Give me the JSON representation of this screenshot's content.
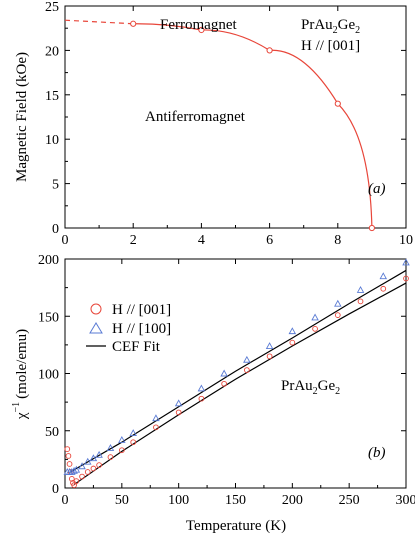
{
  "chart_data": [
    {
      "type": "line",
      "panel_label": "(a)",
      "xlabel": "",
      "ylabel": "Magnetic Field (kOe)",
      "xlim": [
        0,
        10
      ],
      "ylim": [
        0,
        25
      ],
      "x_ticks": [
        "0",
        "2",
        "4",
        "6",
        "8",
        "10"
      ],
      "y_ticks": [
        "0",
        "5",
        "10",
        "15",
        "20",
        "25"
      ],
      "annotations": {
        "ferro": "Ferromagnet",
        "antiferro": "Antiferromagnet",
        "compound": "PrAu",
        "compound_sub1": "2",
        "compound_mid": "Ge",
        "compound_sub2": "2",
        "field_dir": "H // [001]"
      },
      "series": [
        {
          "style": "markers",
          "color": "#e8463a",
          "x": [
            2,
            4,
            6,
            8,
            9
          ],
          "y": [
            23.0,
            22.3,
            20.0,
            14.0,
            0.0
          ]
        },
        {
          "style": "dashed-extrapolation",
          "color": "#e8463a",
          "x": [
            0,
            2
          ],
          "y": [
            23.4,
            23.0
          ]
        }
      ],
      "grid": false
    },
    {
      "type": "scatter",
      "panel_label": "(b)",
      "xlabel": "Temperature (K)",
      "ylabel": "χ",
      "ylabel_sup": "−1",
      "ylabel_unit": "(mole/emu)",
      "xlim": [
        0,
        300
      ],
      "ylim": [
        0,
        200
      ],
      "x_ticks": [
        "0",
        "50",
        "100",
        "150",
        "200",
        "250",
        "300"
      ],
      "y_ticks": [
        "0",
        "50",
        "100",
        "150",
        "200"
      ],
      "annotations": {
        "compound": "PrAu",
        "compound_sub1": "2",
        "compound_mid": "Ge",
        "compound_sub2": "2"
      },
      "legend": [
        {
          "label": "H // [001]",
          "marker": "circle",
          "color": "#e8463a"
        },
        {
          "label": "H // [100]",
          "marker": "triangle",
          "color": "#5a7bd4"
        },
        {
          "label": "CEF Fit",
          "marker": "line",
          "color": "#000000"
        }
      ],
      "legend_position": "top-left",
      "series": [
        {
          "name": "H // [001]",
          "marker": "circle",
          "color": "#e8463a",
          "x": [
            2,
            3,
            4,
            5,
            6,
            7,
            8,
            10,
            15,
            20,
            25,
            30,
            40,
            50,
            60,
            80,
            100,
            120,
            140,
            160,
            180,
            200,
            220,
            240,
            260,
            280,
            300
          ],
          "y": [
            34,
            28,
            21,
            14,
            8,
            4.5,
            2.5,
            6,
            10,
            14,
            17,
            20,
            27,
            33,
            40,
            53,
            66,
            78,
            91,
            103,
            115,
            127,
            139,
            151,
            163,
            174,
            183
          ]
        },
        {
          "name": "H // [100]",
          "marker": "triangle",
          "color": "#5a7bd4",
          "x": [
            2,
            4,
            6,
            8,
            10,
            15,
            20,
            25,
            30,
            40,
            50,
            60,
            80,
            100,
            120,
            140,
            160,
            180,
            200,
            220,
            240,
            260,
            280,
            300
          ],
          "y": [
            14,
            14,
            14,
            15,
            16,
            19,
            23,
            26,
            29,
            35,
            42,
            48,
            61,
            74,
            87,
            100,
            112,
            124,
            137,
            149,
            161,
            173,
            185,
            197
          ]
        },
        {
          "name": "CEF Fit",
          "marker": "line",
          "color": "#000000",
          "x": [
            8,
            50,
            100,
            150,
            200,
            250,
            300
          ],
          "y": [
            3,
            32,
            64,
            95,
            124,
            152,
            179
          ]
        },
        {
          "name": "CEF Fit",
          "marker": "line",
          "color": "#000000",
          "x": [
            3,
            50,
            100,
            150,
            200,
            250,
            300
          ],
          "y": [
            13,
            40,
            71,
            102,
            131,
            161,
            190
          ]
        }
      ],
      "grid": false
    }
  ]
}
